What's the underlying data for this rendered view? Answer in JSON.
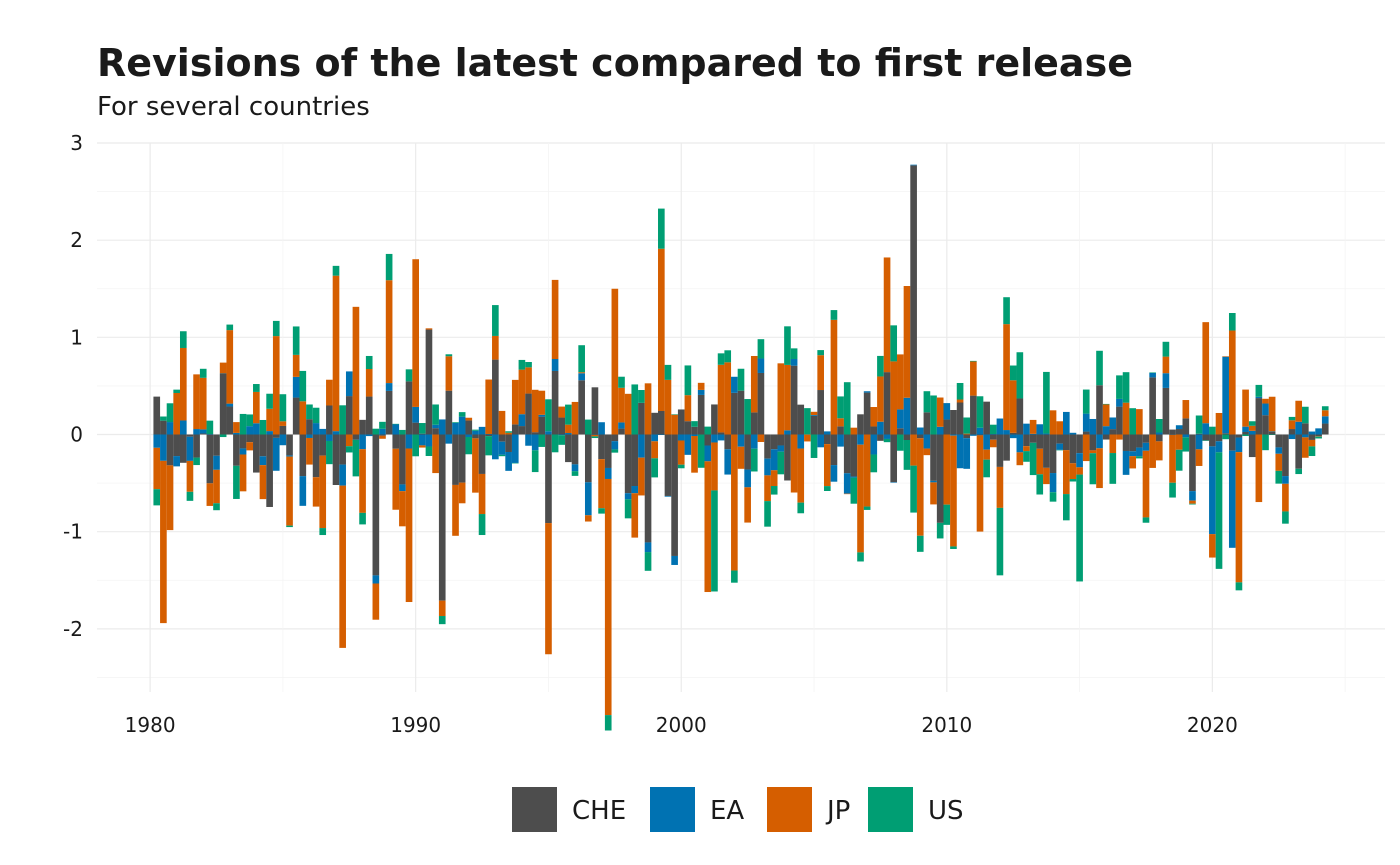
{
  "chart_data": {
    "type": "bar",
    "stacked": true,
    "title": "Revisions of the latest compared to first release",
    "subtitle": "For several countries",
    "xlabel": "",
    "ylabel": "",
    "xlim": [
      1978,
      2026.5
    ],
    "ylim": [
      -2.65,
      3.0
    ],
    "x_ticks": [
      1980,
      1990,
      2000,
      2010,
      2020
    ],
    "y_ticks": [
      -2,
      -1,
      0,
      1,
      2,
      3
    ],
    "grid": true,
    "legend_position": "bottom",
    "colors": {
      "CHE": "#4d4d4d",
      "EA": "#0072b2",
      "JP": "#d55e00",
      "US": "#009e73"
    },
    "highlights": [
      {
        "series": "CHE",
        "x": 2008.75,
        "value": 2.77
      },
      {
        "series": "JP",
        "x": 1997.25,
        "value": -2.43
      },
      {
        "series": "CHE",
        "x": 1991.0,
        "value": -1.71
      },
      {
        "series": "CHE",
        "x": 1990.5,
        "value": 1.08
      },
      {
        "series": "JP",
        "x": 1999.25,
        "value": 1.67
      },
      {
        "series": "JP",
        "x": 1987.0,
        "value": 1.6
      },
      {
        "series": "JP",
        "x": 1990.0,
        "value": 1.52
      },
      {
        "series": "JP",
        "x": 1997.5,
        "value": 1.5
      },
      {
        "series": "JP",
        "x": 1980.5,
        "value": -1.67
      },
      {
        "series": "JP",
        "x": 1987.25,
        "value": -1.67
      },
      {
        "series": "JP",
        "x": 1989.75,
        "value": -1.58
      },
      {
        "series": "CHE",
        "x": 1988.5,
        "value": -1.45
      },
      {
        "series": "JP",
        "x": 1995.0,
        "value": -1.35
      },
      {
        "series": "JP",
        "x": 2021.0,
        "value": -1.34
      },
      {
        "series": "CHE",
        "x": 1999.75,
        "value": -1.25
      },
      {
        "series": "US",
        "x": 2020.25,
        "value": -1.2
      },
      {
        "series": "JP",
        "x": 2005.75,
        "value": 1.18
      },
      {
        "series": "JP",
        "x": 2007.75,
        "value": 1.18
      },
      {
        "series": "JP",
        "x": 2008.5,
        "value": 1.15
      },
      {
        "series": "JP",
        "x": 2010.25,
        "value": -1.14
      },
      {
        "series": "JP",
        "x": 2012.25,
        "value": 1.09
      },
      {
        "series": "JP",
        "x": 2020.75,
        "value": 1.07
      },
      {
        "series": "JP",
        "x": 2019.75,
        "value": 1.04
      },
      {
        "series": "US",
        "x": 2001.25,
        "value": -1.04
      },
      {
        "series": "EA",
        "x": 2020.5,
        "value": 0.79
      },
      {
        "series": "EA",
        "x": 2020.75,
        "value": -1.0
      },
      {
        "series": "US",
        "x": 2015.0,
        "value": -1.1
      },
      {
        "series": "JP",
        "x": 2011.25,
        "value": -0.99
      }
    ]
  },
  "legend": {
    "items": [
      {
        "label": "CHE",
        "color": "#4d4d4d"
      },
      {
        "label": "EA",
        "color": "#0072b2"
      },
      {
        "label": "JP",
        "color": "#d55e00"
      },
      {
        "label": "US",
        "color": "#009e73"
      }
    ]
  }
}
